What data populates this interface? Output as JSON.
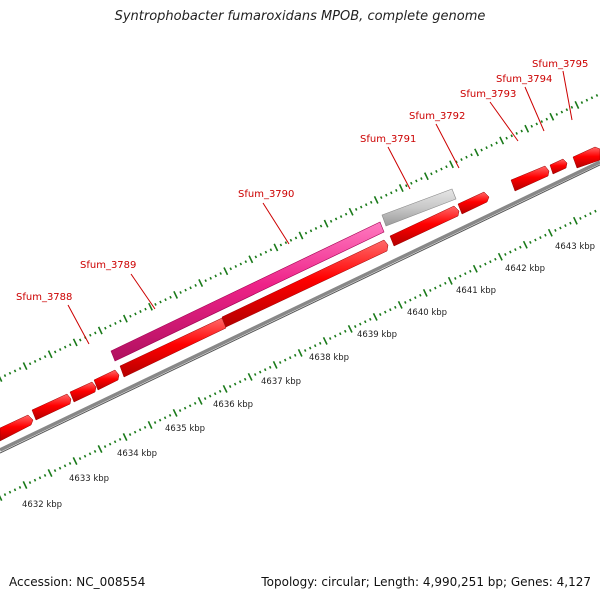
{
  "title": "Syntrophobacter fumaroxidans MPOB, complete genome",
  "footer": {
    "accession": "Accession: NC_008554",
    "topology": "Topology: circular; Length: 4,990,251 bp; Genes: 4,127"
  },
  "colors": {
    "cds": "#ff0000",
    "highlight": "#ee2288",
    "grey_feature": "#c8c8c8",
    "backbone": "#888888",
    "ticks": "#1a7a1a",
    "label": "#cc0000"
  },
  "gene_labels": [
    "Sfum_3788",
    "Sfum_3789",
    "Sfum_3790",
    "Sfum_3791",
    "Sfum_3792",
    "Sfum_3793",
    "Sfum_3794",
    "Sfum_3795"
  ],
  "kbp_labels": [
    "4632 kbp",
    "4633 kbp",
    "4634 kbp",
    "4635 kbp",
    "4636 kbp",
    "4637 kbp",
    "4638 kbp",
    "4639 kbp",
    "4640 kbp",
    "4641 kbp",
    "4642 kbp",
    "4643 kbp"
  ]
}
